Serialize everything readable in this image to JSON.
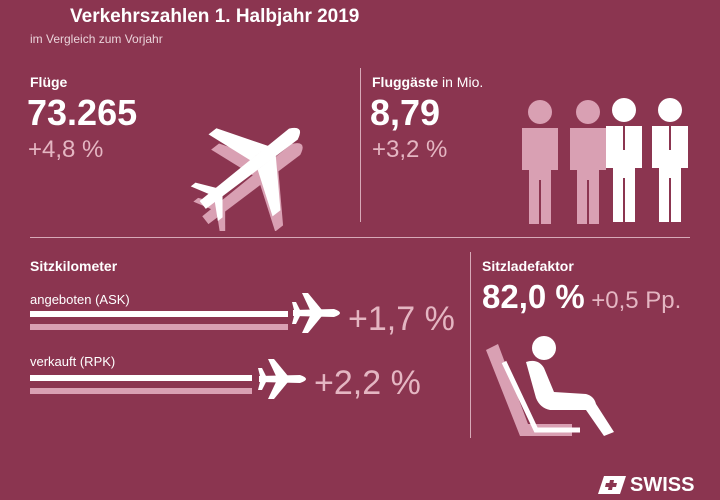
{
  "header": {
    "title": "Verkehrszahlen 1. Halbjahr 2019",
    "subtitle": "im Vergleich zum Vorjahr"
  },
  "flights": {
    "label": "Flüge",
    "value": "73.265",
    "change": "+4,8 %",
    "icon": "airplane-icon"
  },
  "passengers": {
    "label": "Fluggäste",
    "unit": "in Mio.",
    "value": "8,79",
    "change": "+3,2 %",
    "icon": "people-icon"
  },
  "seat_km": {
    "label": "Sitzkilometer",
    "ask_label": "angeboten (ASK)",
    "ask_change": "+1,7 %",
    "rpk_label": "verkauft (RPK)",
    "rpk_change": "+2,2 %"
  },
  "load_factor": {
    "label": "Sitzladefaktor",
    "value": "82,0 %",
    "change": "+0,5 Pp.",
    "icon": "seated-passenger-icon"
  },
  "brand": {
    "name": "SWISS",
    "logo_icon": "swiss-cross-logo-icon"
  },
  "colors": {
    "background": "#8b3550",
    "accent_light": "#e4b6c2",
    "white": "#ffffff"
  }
}
